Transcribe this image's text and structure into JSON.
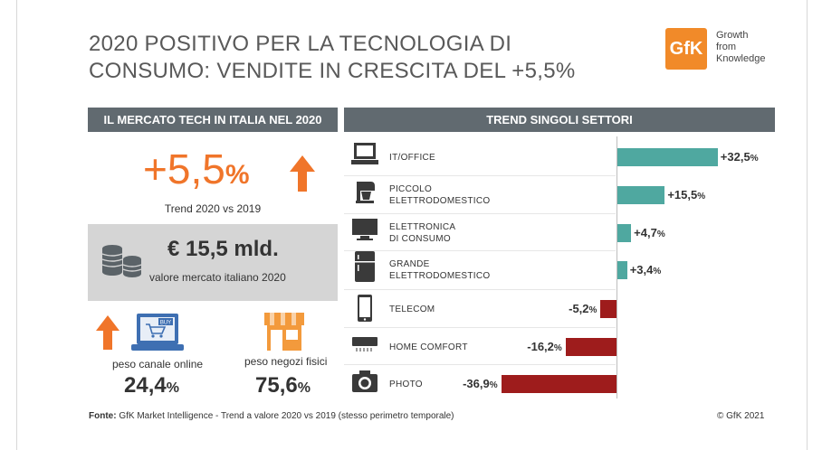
{
  "title": {
    "line1": "2020 POSITIVO PER LA TECNOLOGIA DI",
    "line2": "CONSUMO: VENDITE IN CRESCITA DEL +5,5%"
  },
  "logo": {
    "text": "GfK",
    "tagline": [
      "Growth",
      "from",
      "Knowledge"
    ]
  },
  "left_panel": {
    "header": "IL MERCATO TECH IN ITALIA NEL 2020",
    "growth_value": "+5,5",
    "growth_unit": "%",
    "growth_label": "Trend 2020 vs 2019",
    "market_value": "€ 15,5 mld.",
    "market_label": "valore mercato italiano 2020",
    "online": {
      "label": "peso canale online",
      "value": "24,4",
      "unit": "%",
      "buy_text": "BUY"
    },
    "stores": {
      "label": "peso negozi fisici",
      "value": "75,6",
      "unit": "%"
    }
  },
  "chart_data": {
    "type": "bar",
    "orientation": "horizontal",
    "title": "TREND SINGOLI SETTORI",
    "categories": [
      "IT/OFFICE",
      "PICCOLO ELETTRODOMESTICO",
      "ELETTRONICA DI CONSUMO",
      "GRANDE ELETTRODOMESTICO",
      "TELECOM",
      "HOME COMFORT",
      "PHOTO"
    ],
    "category_lines": [
      [
        "IT/OFFICE"
      ],
      [
        "PICCOLO",
        "ELETTRODOMESTICO"
      ],
      [
        "ELETTRONICA",
        "DI CONSUMO"
      ],
      [
        "GRANDE",
        "ELETTRODOMESTICO"
      ],
      [
        "TELECOM"
      ],
      [
        "HOME COMFORT"
      ],
      [
        "PHOTO"
      ]
    ],
    "values": [
      32.5,
      15.5,
      4.7,
      3.4,
      -5.2,
      -16.2,
      -36.9
    ],
    "labels": [
      "+32,5",
      "+15,5",
      "+4,7",
      "+3,4",
      "-5,2",
      "-16,2",
      "-36,9"
    ],
    "unit": "%",
    "xlim": [
      -40,
      40
    ],
    "colors": {
      "positive": "#4fa8a0",
      "negative": "#9e1c1c"
    },
    "icons": [
      "laptop-icon",
      "stand-mixer-icon",
      "tv-icon",
      "fridge-icon",
      "smartphone-icon",
      "air-conditioner-icon",
      "camera-icon"
    ]
  },
  "footer": {
    "source_label": "Fonte:",
    "source_text": "GfK Market Intelligence  - Trend a valore 2020 vs 2019 (stesso perimetro temporale)",
    "copyright": "© GfK 2021"
  },
  "colors": {
    "accent": "#f0752a",
    "header_bg": "#616a70",
    "panel_bg": "#d5d5d5",
    "title": "#595959"
  }
}
